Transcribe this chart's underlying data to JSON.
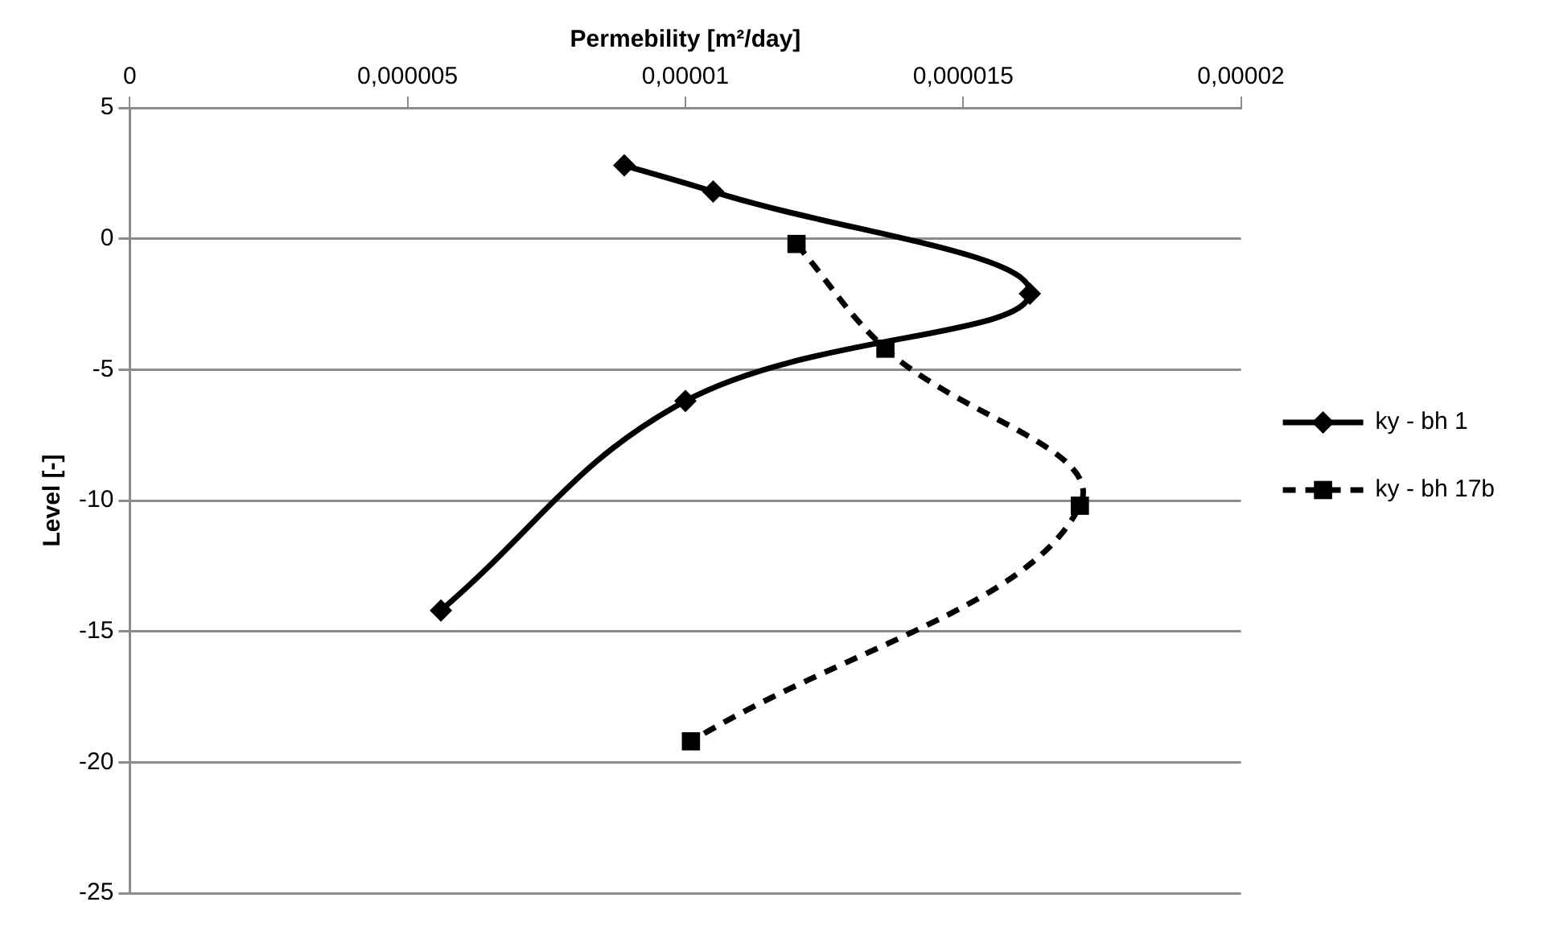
{
  "chart_data": {
    "type": "line",
    "xlabel": "Permebility [m²/day]",
    "ylabel": "Level [-]",
    "xlim": [
      0,
      2e-05
    ],
    "xticks": [
      {
        "value": 0,
        "label": "0"
      },
      {
        "value": 5e-06,
        "label": "0,000005"
      },
      {
        "value": 1e-05,
        "label": "0,00001"
      },
      {
        "value": 1.5e-05,
        "label": "0,000015"
      },
      {
        "value": 2e-05,
        "label": "0,00002"
      }
    ],
    "ylim": [
      -25,
      5
    ],
    "yticks": [
      -25,
      -20,
      -15,
      -10,
      -5,
      0,
      5
    ],
    "grid": "y",
    "legend": "right",
    "series": [
      {
        "name": "ky - bh 1",
        "color": "#000000",
        "marker": "diamond",
        "line_style": "solid",
        "x": [
          8.9e-06,
          1.05e-05,
          1.62e-05,
          1e-05,
          5.6e-06
        ],
        "values": [
          2.8,
          1.8,
          -2.1,
          -6.2,
          -14.2
        ]
      },
      {
        "name": "ky - bh 17b",
        "color": "#000000",
        "marker": "square",
        "line_style": "dashed",
        "x": [
          1.2e-05,
          1.36e-05,
          1.71e-05,
          1.01e-05
        ],
        "values": [
          -0.2,
          -4.2,
          -10.2,
          -19.2
        ]
      }
    ]
  }
}
